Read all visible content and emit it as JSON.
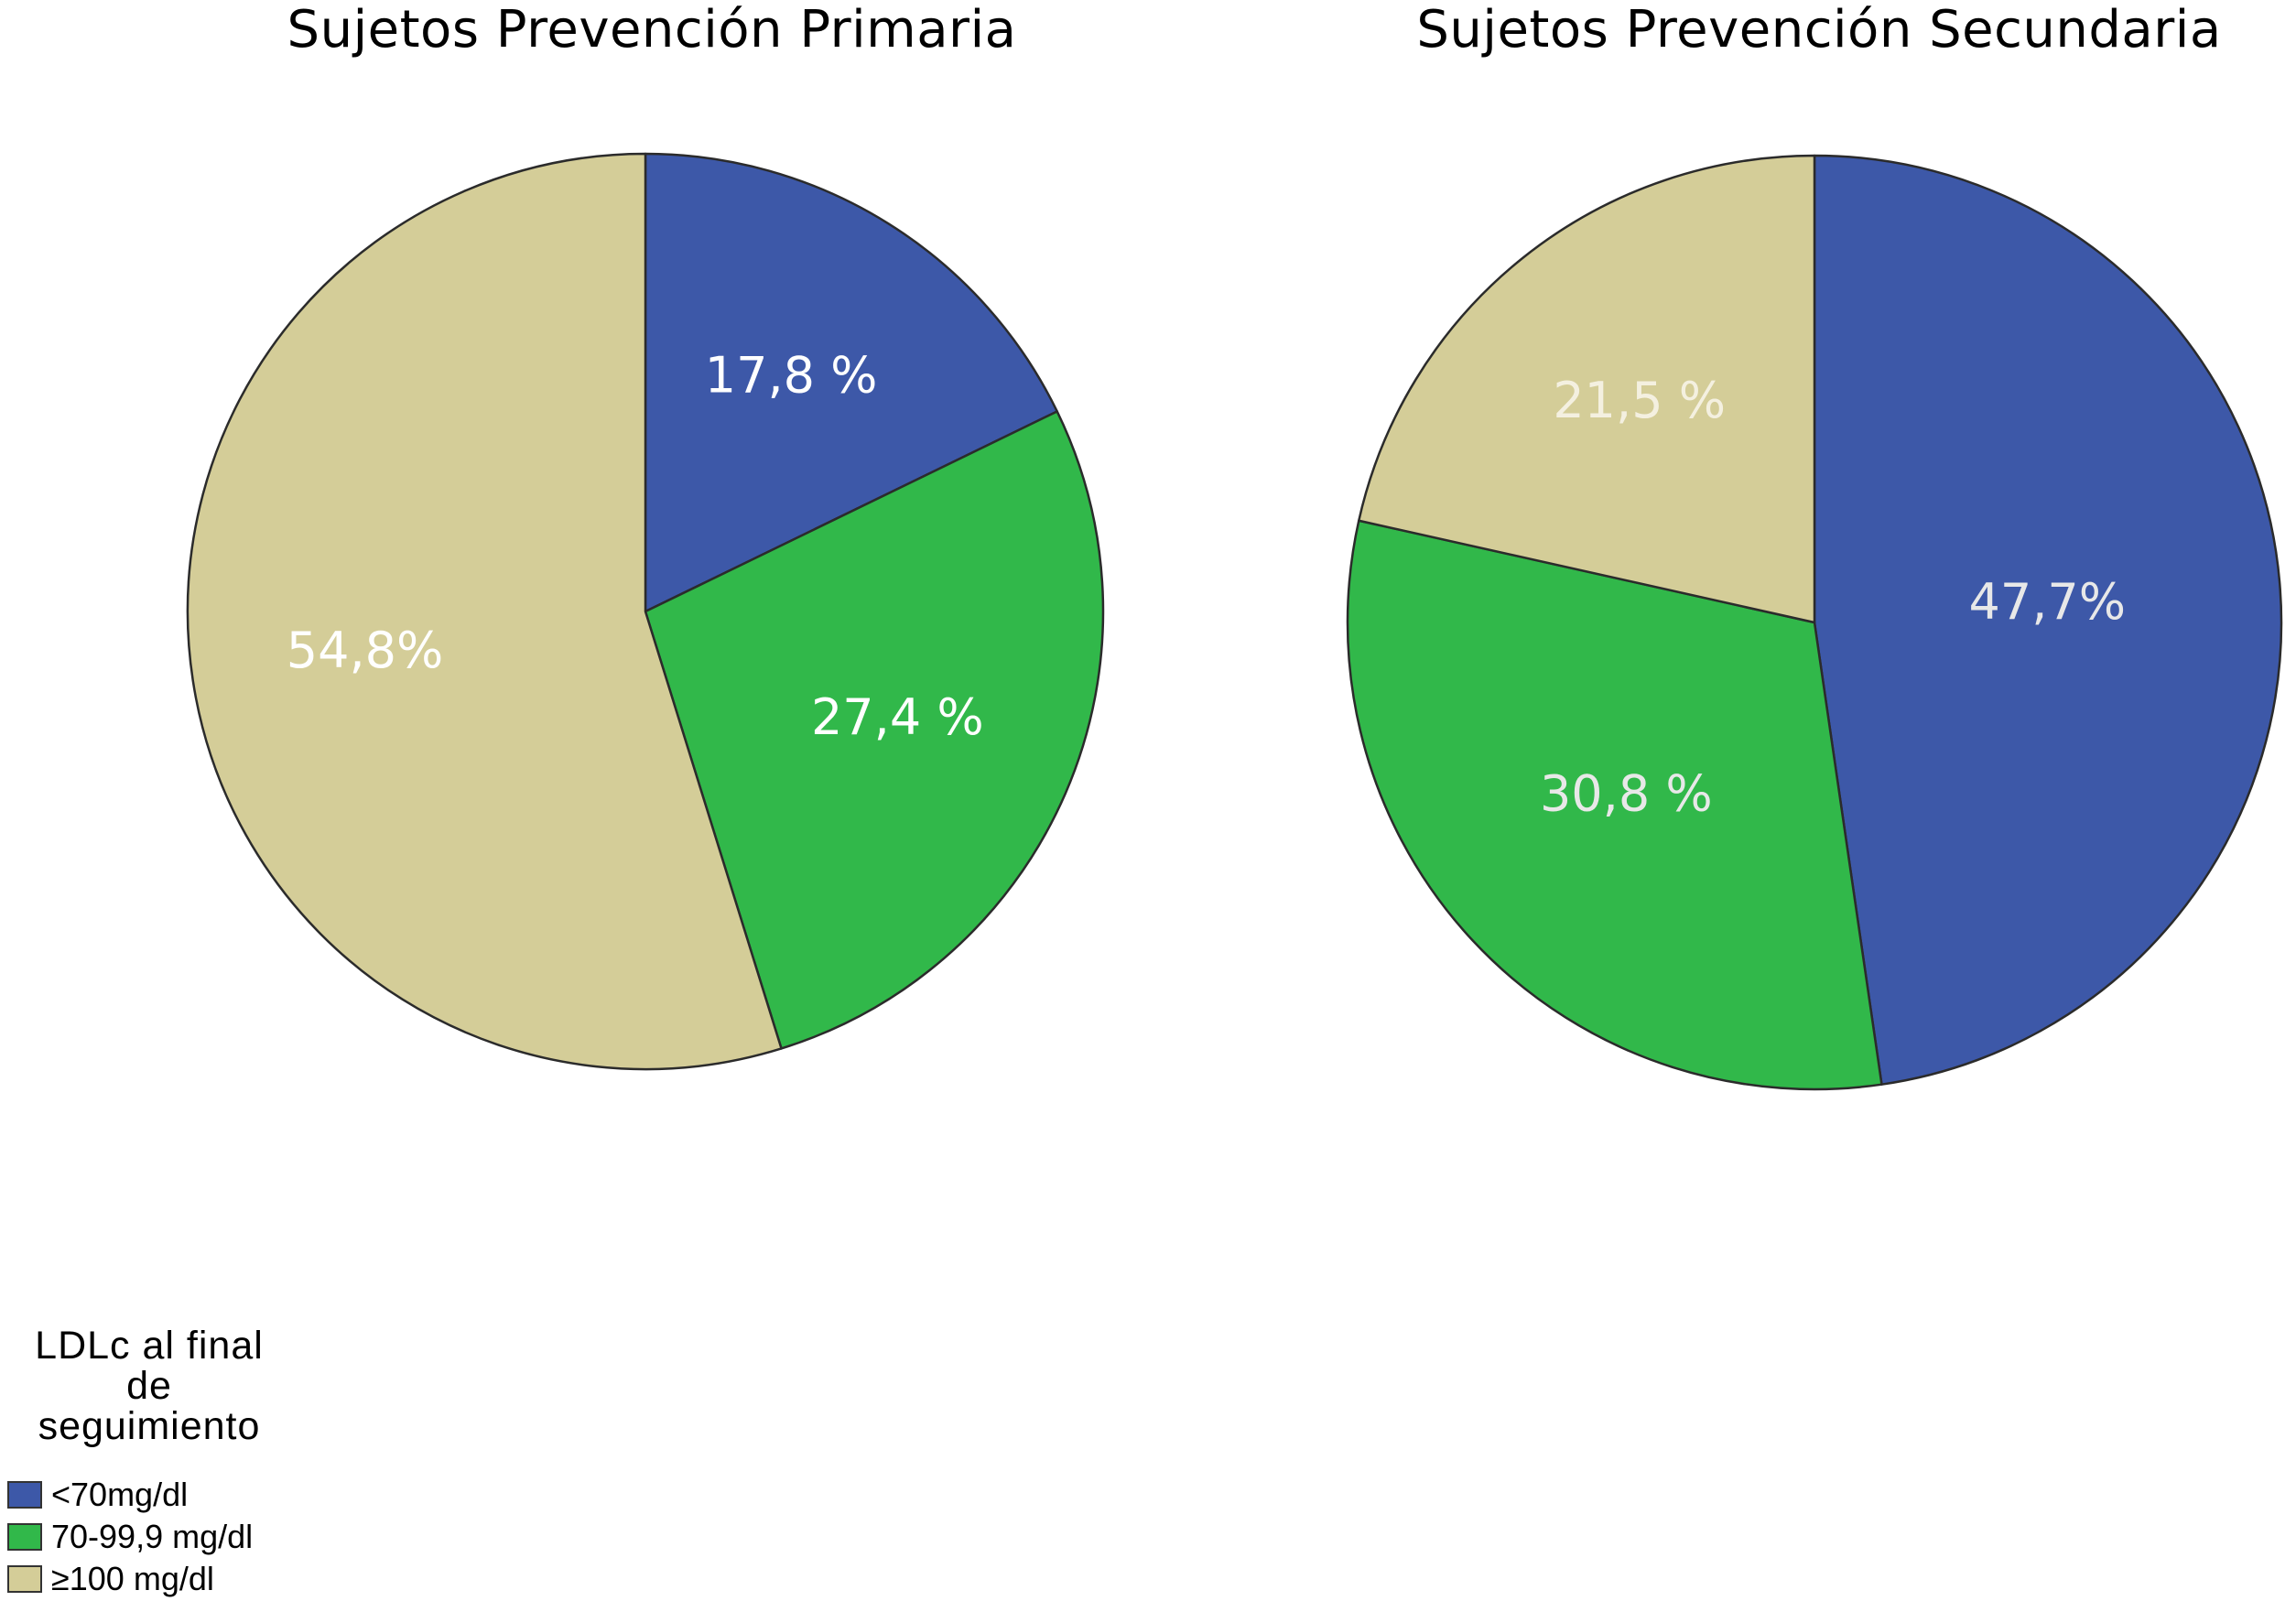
{
  "legend": {
    "title_lines": [
      "LDLc al final",
      "de",
      "seguimiento"
    ]
  },
  "chart_data": [
    {
      "type": "pie",
      "title": "Sujetos Prevención Primaria",
      "slices": [
        {
          "label": "<70mg/dl",
          "value": 17.8,
          "value_label": "17,8 %",
          "color": "#3d58a8",
          "label_color": "#ffffff"
        },
        {
          "label": "70-99,9 mg/dl",
          "value": 27.4,
          "value_label": "27,4 %",
          "color": "#31b84a",
          "label_color": "#ffffff"
        },
        {
          "label": "≥100 mg/dl",
          "value": 54.8,
          "value_label": "54,8%",
          "color": "#d4cd98",
          "label_color": "#ffffff"
        }
      ]
    },
    {
      "type": "pie",
      "title": "Sujetos Prevención Secundaria",
      "slices": [
        {
          "label": "<70mg/dl",
          "value": 47.7,
          "value_label": "47,7%",
          "color": "#3d58a8",
          "label_color": "#e8e8e8"
        },
        {
          "label": "70-99,9 mg/dl",
          "value": 30.8,
          "value_label": "30,8 %",
          "color": "#31b84a",
          "label_color": "#e8e8e8"
        },
        {
          "label": "≥100 mg/dl",
          "value": 21.5,
          "value_label": "21,5 %",
          "color": "#d4cd98",
          "label_color": "#f4f0e0"
        }
      ]
    }
  ]
}
